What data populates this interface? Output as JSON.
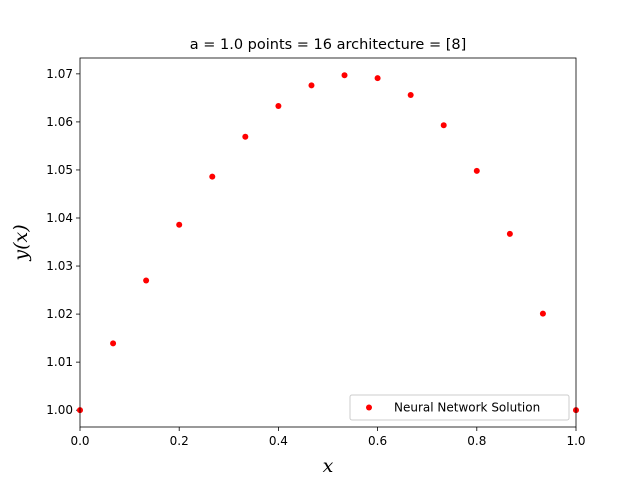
{
  "chart_data": {
    "type": "scatter",
    "title": "a = 1.0 points = 16 architecture = [8]",
    "xlabel": "x",
    "ylabel": "y(x)",
    "xlim": [
      0.0,
      1.0
    ],
    "ylim": [
      0.9965,
      1.0733
    ],
    "xticks": [
      0.0,
      0.2,
      0.4,
      0.6,
      0.8,
      1.0
    ],
    "xtick_labels": [
      "0.0",
      "0.2",
      "0.4",
      "0.6",
      "0.8",
      "1.0"
    ],
    "yticks": [
      1.0,
      1.01,
      1.02,
      1.03,
      1.04,
      1.05,
      1.06,
      1.07
    ],
    "ytick_labels": [
      "1.00",
      "1.01",
      "1.02",
      "1.03",
      "1.04",
      "1.05",
      "1.06",
      "1.07"
    ],
    "grid": false,
    "legend_position": "lower-right",
    "series": [
      {
        "name": "Neural Network Solution",
        "color": "#ff0000",
        "marker": "circle",
        "x": [
          0.0,
          0.0667,
          0.1333,
          0.2,
          0.2667,
          0.3333,
          0.4,
          0.4667,
          0.5333,
          0.6,
          0.6667,
          0.7333,
          0.8,
          0.8667,
          0.9333,
          1.0
        ],
        "y": [
          1.0,
          1.0139,
          1.027,
          1.0386,
          1.0486,
          1.0569,
          1.0633,
          1.0676,
          1.0697,
          1.0691,
          1.0656,
          1.0593,
          1.0498,
          1.0367,
          1.0201,
          1.0
        ]
      }
    ]
  }
}
